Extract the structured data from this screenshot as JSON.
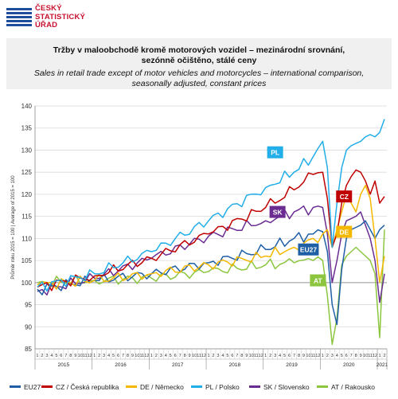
{
  "header": {
    "logo_lines": [
      "ČESKÝ",
      "STATISTICKÝ",
      "ÚŘAD"
    ],
    "title_cz_line1": "Tržby v maloobchodě  kromě motorových vozidel – mezinárodní srovnání,",
    "title_cz_line2": "sezónně očištěno, stálé ceny",
    "title_en_line1": "Sales in retail trade except of motor vehicles and motorcycles  – international comparison,",
    "title_en_line2": "seasonally adjusted, constant prices"
  },
  "colors": {
    "EU27": "#1f5fa6",
    "CZ": "#c00000",
    "DE": "#f5b800",
    "PL": "#22aee8",
    "SK": "#6a2c91",
    "AT": "#8cc63f"
  },
  "chart_data": {
    "type": "line",
    "ylabel": "Průměr roku 2015 = 100 | Average of 2015 = 100",
    "ylim": [
      85,
      140
    ],
    "yticks": [
      85,
      90,
      95,
      100,
      105,
      110,
      115,
      120,
      125,
      130,
      135,
      140
    ],
    "month_labels": [
      "1",
      "2",
      "3",
      "4",
      "5",
      "6",
      "7",
      "8",
      "9",
      "10",
      "11",
      "12"
    ],
    "years": [
      "2015",
      "2016",
      "2017",
      "2018",
      "2019",
      "2020",
      "2021"
    ],
    "n_points": 74,
    "grid": true,
    "series": [
      {
        "key": "EU27",
        "name": "EU27",
        "label": "EU27",
        "anchors": [
          [
            0,
            98.5
          ],
          [
            12,
            100.5
          ],
          [
            24,
            102
          ],
          [
            36,
            104.5
          ],
          [
            48,
            107.5
          ],
          [
            54,
            110
          ],
          [
            58,
            111
          ],
          [
            60,
            111.5
          ],
          [
            61,
            107
          ],
          [
            62,
            95
          ],
          [
            63,
            90.5
          ],
          [
            64,
            103
          ],
          [
            65,
            110
          ],
          [
            66,
            112
          ],
          [
            67,
            112.5
          ],
          [
            68,
            113
          ],
          [
            69,
            114
          ],
          [
            70,
            112
          ],
          [
            71,
            110
          ],
          [
            72,
            112
          ],
          [
            73,
            113
          ]
        ],
        "label_at": [
          57,
          107.5
        ]
      },
      {
        "key": "CZ",
        "name": "CZ / Česká republika",
        "label": "CZ",
        "anchors": [
          [
            0,
            99
          ],
          [
            12,
            101.5
          ],
          [
            24,
            105.5
          ],
          [
            36,
            111
          ],
          [
            48,
            117
          ],
          [
            54,
            121
          ],
          [
            58,
            124.5
          ],
          [
            60,
            125
          ],
          [
            61,
            119
          ],
          [
            62,
            108
          ],
          [
            63,
            111
          ],
          [
            64,
            118
          ],
          [
            65,
            122
          ],
          [
            66,
            124
          ],
          [
            67,
            125.5
          ],
          [
            68,
            125
          ],
          [
            69,
            123
          ],
          [
            70,
            120
          ],
          [
            71,
            123
          ],
          [
            72,
            118
          ],
          [
            73,
            119.5
          ]
        ],
        "label_at": [
          64.5,
          119.5
        ]
      },
      {
        "key": "DE",
        "name": "DE / Německo",
        "label": "DE",
        "anchors": [
          [
            0,
            99.5
          ],
          [
            12,
            100.5
          ],
          [
            24,
            102
          ],
          [
            36,
            104
          ],
          [
            48,
            106
          ],
          [
            54,
            108
          ],
          [
            58,
            110
          ],
          [
            60,
            111
          ],
          [
            61,
            112
          ],
          [
            62,
            108
          ],
          [
            63,
            112
          ],
          [
            64,
            116
          ],
          [
            65,
            120
          ],
          [
            66,
            118
          ],
          [
            67,
            116
          ],
          [
            68,
            120
          ],
          [
            69,
            122
          ],
          [
            70,
            119
          ],
          [
            71,
            110
          ],
          [
            72,
            100
          ],
          [
            73,
            106
          ]
        ],
        "label_at": [
          64.5,
          111.5
        ]
      },
      {
        "key": "PL",
        "name": "PL / Polsko",
        "label": "PL",
        "anchors": [
          [
            0,
            99
          ],
          [
            12,
            102
          ],
          [
            24,
            107
          ],
          [
            36,
            114
          ],
          [
            48,
            121.5
          ],
          [
            54,
            125
          ],
          [
            58,
            128.5
          ],
          [
            60,
            132
          ],
          [
            61,
            126
          ],
          [
            62,
            108
          ],
          [
            63,
            118
          ],
          [
            64,
            126
          ],
          [
            65,
            130
          ],
          [
            66,
            131
          ],
          [
            67,
            131.5
          ],
          [
            68,
            132
          ],
          [
            69,
            133
          ],
          [
            70,
            133.5
          ],
          [
            71,
            133
          ],
          [
            72,
            134
          ],
          [
            73,
            137
          ]
        ],
        "label_at": [
          50,
          129.5
        ]
      },
      {
        "key": "SK",
        "name": "SK / Slovensko",
        "label": "SK",
        "anchors": [
          [
            0,
            98
          ],
          [
            12,
            101
          ],
          [
            24,
            105.5
          ],
          [
            36,
            110.5
          ],
          [
            48,
            114
          ],
          [
            54,
            116
          ],
          [
            58,
            117
          ],
          [
            60,
            117
          ],
          [
            61,
            111
          ],
          [
            62,
            100
          ],
          [
            63,
            105
          ],
          [
            64,
            111
          ],
          [
            65,
            114
          ],
          [
            66,
            114.5
          ],
          [
            67,
            115
          ],
          [
            68,
            116
          ],
          [
            69,
            113
          ],
          [
            70,
            110
          ],
          [
            71,
            105
          ],
          [
            72,
            95.5
          ],
          [
            73,
            102
          ]
        ],
        "label_at": [
          50.5,
          116
        ]
      },
      {
        "key": "AT",
        "name": "AT / Rakousko",
        "label": "AT",
        "anchors": [
          [
            0,
            100
          ],
          [
            12,
            100.5
          ],
          [
            24,
            101
          ],
          [
            36,
            102.5
          ],
          [
            48,
            104
          ],
          [
            54,
            104.5
          ],
          [
            58,
            105
          ],
          [
            60,
            105
          ],
          [
            61,
            97
          ],
          [
            62,
            86
          ],
          [
            63,
            92
          ],
          [
            64,
            104
          ],
          [
            65,
            106
          ],
          [
            66,
            107
          ],
          [
            67,
            108
          ],
          [
            68,
            107
          ],
          [
            69,
            106
          ],
          [
            70,
            105
          ],
          [
            71,
            102
          ],
          [
            72,
            87.5
          ],
          [
            73,
            112
          ]
        ],
        "label_at": [
          59,
          100.5
        ]
      }
    ]
  }
}
